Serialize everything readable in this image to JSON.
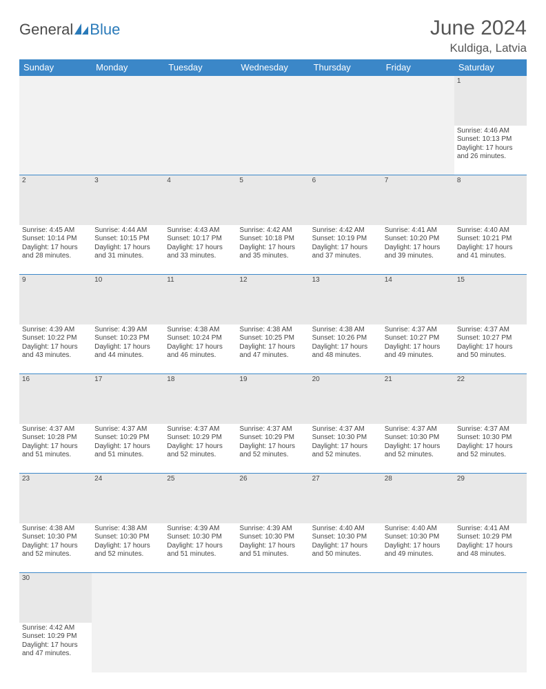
{
  "logo": {
    "word1": "General",
    "word2": "Blue"
  },
  "title": "June 2024",
  "location": "Kuldiga, Latvia",
  "colors": {
    "header_bg": "#3b87c8",
    "header_fg": "#ffffff",
    "daynum_bg": "#e8e8e8",
    "empty_bg": "#f2f2f2",
    "row_divider": "#3b87c8",
    "text": "#444444",
    "logo_gray": "#4a4a4a",
    "logo_blue": "#2a7ab9"
  },
  "weekdays": [
    "Sunday",
    "Monday",
    "Tuesday",
    "Wednesday",
    "Thursday",
    "Friday",
    "Saturday"
  ],
  "weeks": [
    [
      null,
      null,
      null,
      null,
      null,
      null,
      {
        "n": "1",
        "sr": "Sunrise: 4:46 AM",
        "ss": "Sunset: 10:13 PM",
        "d1": "Daylight: 17 hours",
        "d2": "and 26 minutes."
      }
    ],
    [
      {
        "n": "2",
        "sr": "Sunrise: 4:45 AM",
        "ss": "Sunset: 10:14 PM",
        "d1": "Daylight: 17 hours",
        "d2": "and 28 minutes."
      },
      {
        "n": "3",
        "sr": "Sunrise: 4:44 AM",
        "ss": "Sunset: 10:15 PM",
        "d1": "Daylight: 17 hours",
        "d2": "and 31 minutes."
      },
      {
        "n": "4",
        "sr": "Sunrise: 4:43 AM",
        "ss": "Sunset: 10:17 PM",
        "d1": "Daylight: 17 hours",
        "d2": "and 33 minutes."
      },
      {
        "n": "5",
        "sr": "Sunrise: 4:42 AM",
        "ss": "Sunset: 10:18 PM",
        "d1": "Daylight: 17 hours",
        "d2": "and 35 minutes."
      },
      {
        "n": "6",
        "sr": "Sunrise: 4:42 AM",
        "ss": "Sunset: 10:19 PM",
        "d1": "Daylight: 17 hours",
        "d2": "and 37 minutes."
      },
      {
        "n": "7",
        "sr": "Sunrise: 4:41 AM",
        "ss": "Sunset: 10:20 PM",
        "d1": "Daylight: 17 hours",
        "d2": "and 39 minutes."
      },
      {
        "n": "8",
        "sr": "Sunrise: 4:40 AM",
        "ss": "Sunset: 10:21 PM",
        "d1": "Daylight: 17 hours",
        "d2": "and 41 minutes."
      }
    ],
    [
      {
        "n": "9",
        "sr": "Sunrise: 4:39 AM",
        "ss": "Sunset: 10:22 PM",
        "d1": "Daylight: 17 hours",
        "d2": "and 43 minutes."
      },
      {
        "n": "10",
        "sr": "Sunrise: 4:39 AM",
        "ss": "Sunset: 10:23 PM",
        "d1": "Daylight: 17 hours",
        "d2": "and 44 minutes."
      },
      {
        "n": "11",
        "sr": "Sunrise: 4:38 AM",
        "ss": "Sunset: 10:24 PM",
        "d1": "Daylight: 17 hours",
        "d2": "and 46 minutes."
      },
      {
        "n": "12",
        "sr": "Sunrise: 4:38 AM",
        "ss": "Sunset: 10:25 PM",
        "d1": "Daylight: 17 hours",
        "d2": "and 47 minutes."
      },
      {
        "n": "13",
        "sr": "Sunrise: 4:38 AM",
        "ss": "Sunset: 10:26 PM",
        "d1": "Daylight: 17 hours",
        "d2": "and 48 minutes."
      },
      {
        "n": "14",
        "sr": "Sunrise: 4:37 AM",
        "ss": "Sunset: 10:27 PM",
        "d1": "Daylight: 17 hours",
        "d2": "and 49 minutes."
      },
      {
        "n": "15",
        "sr": "Sunrise: 4:37 AM",
        "ss": "Sunset: 10:27 PM",
        "d1": "Daylight: 17 hours",
        "d2": "and 50 minutes."
      }
    ],
    [
      {
        "n": "16",
        "sr": "Sunrise: 4:37 AM",
        "ss": "Sunset: 10:28 PM",
        "d1": "Daylight: 17 hours",
        "d2": "and 51 minutes."
      },
      {
        "n": "17",
        "sr": "Sunrise: 4:37 AM",
        "ss": "Sunset: 10:29 PM",
        "d1": "Daylight: 17 hours",
        "d2": "and 51 minutes."
      },
      {
        "n": "18",
        "sr": "Sunrise: 4:37 AM",
        "ss": "Sunset: 10:29 PM",
        "d1": "Daylight: 17 hours",
        "d2": "and 52 minutes."
      },
      {
        "n": "19",
        "sr": "Sunrise: 4:37 AM",
        "ss": "Sunset: 10:29 PM",
        "d1": "Daylight: 17 hours",
        "d2": "and 52 minutes."
      },
      {
        "n": "20",
        "sr": "Sunrise: 4:37 AM",
        "ss": "Sunset: 10:30 PM",
        "d1": "Daylight: 17 hours",
        "d2": "and 52 minutes."
      },
      {
        "n": "21",
        "sr": "Sunrise: 4:37 AM",
        "ss": "Sunset: 10:30 PM",
        "d1": "Daylight: 17 hours",
        "d2": "and 52 minutes."
      },
      {
        "n": "22",
        "sr": "Sunrise: 4:37 AM",
        "ss": "Sunset: 10:30 PM",
        "d1": "Daylight: 17 hours",
        "d2": "and 52 minutes."
      }
    ],
    [
      {
        "n": "23",
        "sr": "Sunrise: 4:38 AM",
        "ss": "Sunset: 10:30 PM",
        "d1": "Daylight: 17 hours",
        "d2": "and 52 minutes."
      },
      {
        "n": "24",
        "sr": "Sunrise: 4:38 AM",
        "ss": "Sunset: 10:30 PM",
        "d1": "Daylight: 17 hours",
        "d2": "and 52 minutes."
      },
      {
        "n": "25",
        "sr": "Sunrise: 4:39 AM",
        "ss": "Sunset: 10:30 PM",
        "d1": "Daylight: 17 hours",
        "d2": "and 51 minutes."
      },
      {
        "n": "26",
        "sr": "Sunrise: 4:39 AM",
        "ss": "Sunset: 10:30 PM",
        "d1": "Daylight: 17 hours",
        "d2": "and 51 minutes."
      },
      {
        "n": "27",
        "sr": "Sunrise: 4:40 AM",
        "ss": "Sunset: 10:30 PM",
        "d1": "Daylight: 17 hours",
        "d2": "and 50 minutes."
      },
      {
        "n": "28",
        "sr": "Sunrise: 4:40 AM",
        "ss": "Sunset: 10:30 PM",
        "d1": "Daylight: 17 hours",
        "d2": "and 49 minutes."
      },
      {
        "n": "29",
        "sr": "Sunrise: 4:41 AM",
        "ss": "Sunset: 10:29 PM",
        "d1": "Daylight: 17 hours",
        "d2": "and 48 minutes."
      }
    ],
    [
      {
        "n": "30",
        "sr": "Sunrise: 4:42 AM",
        "ss": "Sunset: 10:29 PM",
        "d1": "Daylight: 17 hours",
        "d2": "and 47 minutes."
      },
      null,
      null,
      null,
      null,
      null,
      null
    ]
  ]
}
